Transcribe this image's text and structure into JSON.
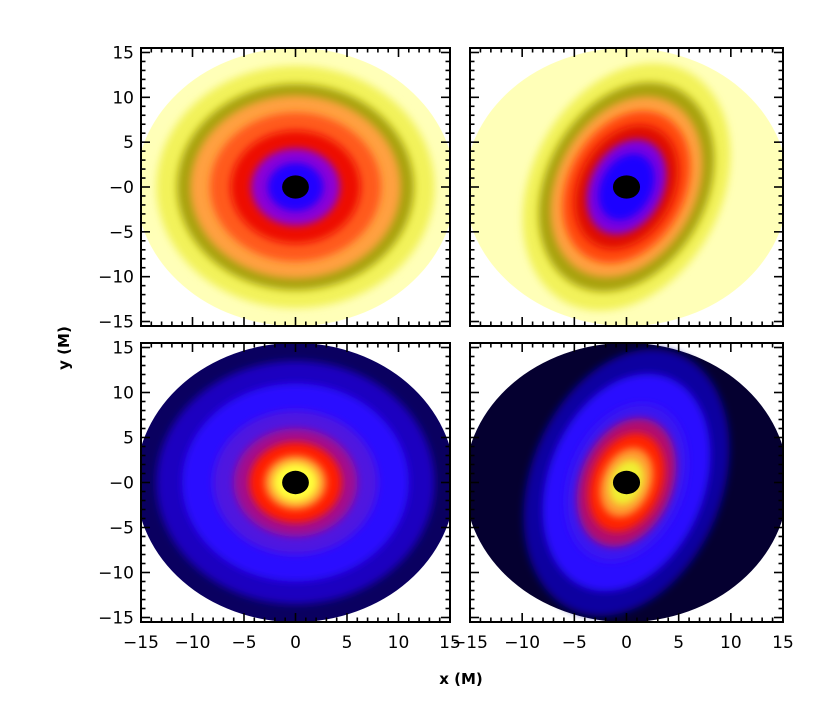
{
  "chart_data": {
    "type": "heatmap",
    "layout": "2x2 panel grid, shared axes",
    "xlabel": "x (M)",
    "ylabel": "y (M)",
    "xlim": [
      -15,
      15
    ],
    "ylim": [
      -15.5,
      15.5
    ],
    "x_ticks": [
      -15,
      -10,
      -5,
      0,
      5,
      10,
      15
    ],
    "x_tick_labels": [
      "−15",
      "−10",
      "−5",
      "0",
      "5",
      "10",
      "15"
    ],
    "y_ticks": [
      15,
      10,
      5,
      0,
      -5,
      -10,
      -15
    ],
    "y_tick_labels": [
      "15",
      "10",
      "5",
      "−0",
      "−5",
      "−10",
      "−15"
    ],
    "colormap": [
      "#000000",
      "#2a00ff",
      "#ff1a00",
      "#ff9a3c",
      "#9a9a00",
      "#ffff3a",
      "#ffffe0"
    ],
    "panels": [
      {
        "position": "top-left",
        "pattern": "concentric rings",
        "rings": [
          {
            "radius": 15.5,
            "color": "#ffffb8"
          },
          {
            "radius": 13.5,
            "color": "#f2f25a"
          },
          {
            "radius": 11.5,
            "color": "#a8a20e"
          },
          {
            "radius": 10.2,
            "color": "#ffa040"
          },
          {
            "radius": 8.3,
            "color": "#ff5a1a"
          },
          {
            "radius": 6.3,
            "color": "#ee0d00"
          },
          {
            "radius": 4.3,
            "color": "#8a00d8"
          },
          {
            "radius": 2.7,
            "color": "#2000ff"
          },
          {
            "radius": 1.3,
            "color": "#000000"
          }
        ]
      },
      {
        "position": "top-right",
        "pattern": "tilted elongated spiral",
        "rings": [
          {
            "radius": 15.5,
            "color": "#ffffb8"
          },
          {
            "radius": 13.0,
            "color": "#f2f25a"
          },
          {
            "radius": 11.0,
            "color": "#a8a20e"
          },
          {
            "radius": 9.5,
            "color": "#ffa040"
          },
          {
            "radius": 8.0,
            "color": "#ff4a10"
          },
          {
            "radius": 6.5,
            "color": "#e00a00"
          },
          {
            "radius": 5.0,
            "color": "#7a00e0"
          },
          {
            "radius": 3.5,
            "color": "#1a00ff"
          },
          {
            "radius": 1.3,
            "color": "#000000"
          }
        ]
      },
      {
        "position": "bottom-left",
        "pattern": "bright core with blue disc",
        "rings": [
          {
            "radius": 15.5,
            "color": "#0a0060"
          },
          {
            "radius": 13.5,
            "color": "#1a00c0"
          },
          {
            "radius": 11.0,
            "color": "#2a10ff"
          },
          {
            "radius": 8.0,
            "color": "#5018e0"
          },
          {
            "radius": 6.0,
            "color": "#a01090"
          },
          {
            "radius": 4.5,
            "color": "#ff1a00"
          },
          {
            "radius": 3.0,
            "color": "#ff9a30"
          },
          {
            "radius": 2.2,
            "color": "#ffff3a"
          },
          {
            "radius": 1.3,
            "color": "#000000"
          }
        ]
      },
      {
        "position": "bottom-right",
        "pattern": "bright elongated core with blue disc",
        "rings": [
          {
            "radius": 15.5,
            "color": "#050030"
          },
          {
            "radius": 13.5,
            "color": "#1000a0"
          },
          {
            "radius": 11.0,
            "color": "#2a10ff"
          },
          {
            "radius": 8.0,
            "color": "#3a14f0"
          },
          {
            "radius": 6.5,
            "color": "#b01070"
          },
          {
            "radius": 5.0,
            "color": "#ff2000"
          },
          {
            "radius": 3.5,
            "color": "#ff9a30"
          },
          {
            "radius": 2.3,
            "color": "#f0f030"
          },
          {
            "radius": 1.3,
            "color": "#000000"
          }
        ]
      }
    ]
  }
}
